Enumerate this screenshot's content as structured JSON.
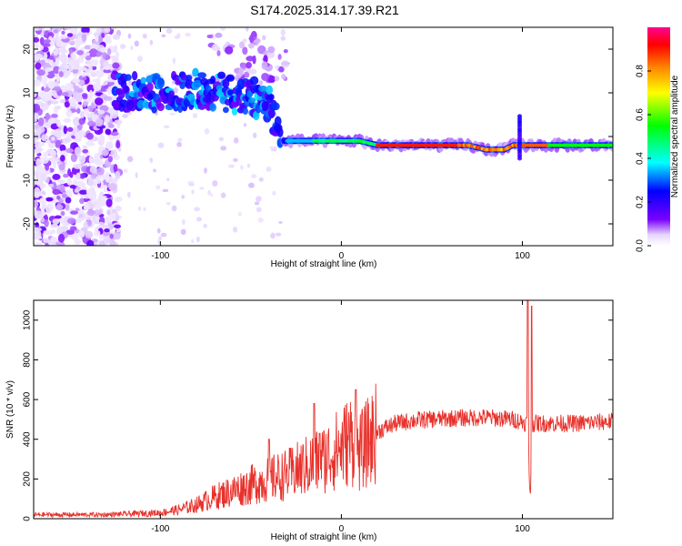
{
  "title": "S174.2025.314.17.39.R21",
  "chart_data": [
    {
      "type": "heatmap",
      "name": "spectrogram",
      "xlabel": "Height of straight line (km)",
      "ylabel": "Frequency (Hz)",
      "xlim": [
        -170,
        150
      ],
      "ylim": [
        -25,
        25
      ],
      "xticks": [
        -100,
        0,
        100
      ],
      "yticks": [
        -20,
        -10,
        0,
        10,
        20
      ],
      "colorbar": {
        "label": "Normalized spectral amplitude",
        "range": [
          0,
          1
        ],
        "ticks": [
          "0.0",
          "0.2",
          "0.4",
          "0.6",
          "0.8"
        ]
      },
      "ridge": {
        "description": "dominant frequency track",
        "points": [
          [
            -125,
            10
          ],
          [
            -110,
            10
          ],
          [
            -95,
            10
          ],
          [
            -80,
            11
          ],
          [
            -65,
            10
          ],
          [
            -50,
            9
          ],
          [
            -40,
            8
          ],
          [
            -32,
            -1
          ],
          [
            -20,
            -1
          ],
          [
            -10,
            -1
          ],
          [
            0,
            -1
          ],
          [
            10,
            -1
          ],
          [
            20,
            -2
          ],
          [
            40,
            -2
          ],
          [
            60,
            -2
          ],
          [
            70,
            -2
          ],
          [
            80,
            -3
          ],
          [
            90,
            -3
          ],
          [
            95,
            -2
          ],
          [
            100,
            -2
          ],
          [
            110,
            -2
          ],
          [
            130,
            -2
          ],
          [
            150,
            -2
          ]
        ]
      }
    },
    {
      "type": "line",
      "name": "snr",
      "xlabel": "Height of straight line (km)",
      "ylabel": "SNR (10 * v/v)",
      "xlim": [
        -170,
        150
      ],
      "ylim": [
        0,
        1100
      ],
      "xticks": [
        -100,
        0,
        100
      ],
      "yticks": [
        0,
        200,
        400,
        600,
        800,
        1000
      ],
      "series": [
        {
          "name": "SNR",
          "color": "#e8312b",
          "envelope": [
            [
              -170,
              20
            ],
            [
              -130,
              20
            ],
            [
              -100,
              30
            ],
            [
              -90,
              45
            ],
            [
              -80,
              70
            ],
            [
              -70,
              110
            ],
            [
              -60,
              140
            ],
            [
              -50,
              170
            ],
            [
              -40,
              200
            ],
            [
              -30,
              220
            ],
            [
              -20,
              260
            ],
            [
              -10,
              300
            ],
            [
              0,
              360
            ],
            [
              5,
              400
            ],
            [
              10,
              330
            ],
            [
              15,
              390
            ],
            [
              20,
              440
            ],
            [
              30,
              480
            ],
            [
              40,
              495
            ],
            [
              60,
              505
            ],
            [
              80,
              510
            ],
            [
              95,
              500
            ],
            [
              103,
              480
            ],
            [
              104,
              230
            ],
            [
              105,
              480
            ],
            [
              110,
              480
            ],
            [
              130,
              480
            ],
            [
              150,
              490
            ]
          ],
          "spikes": [
            [
              -40,
              400
            ],
            [
              -15,
              580
            ],
            [
              -12,
              430
            ],
            [
              8,
              650
            ],
            [
              103,
              1100
            ],
            [
              105,
              1070
            ]
          ]
        }
      ]
    }
  ]
}
